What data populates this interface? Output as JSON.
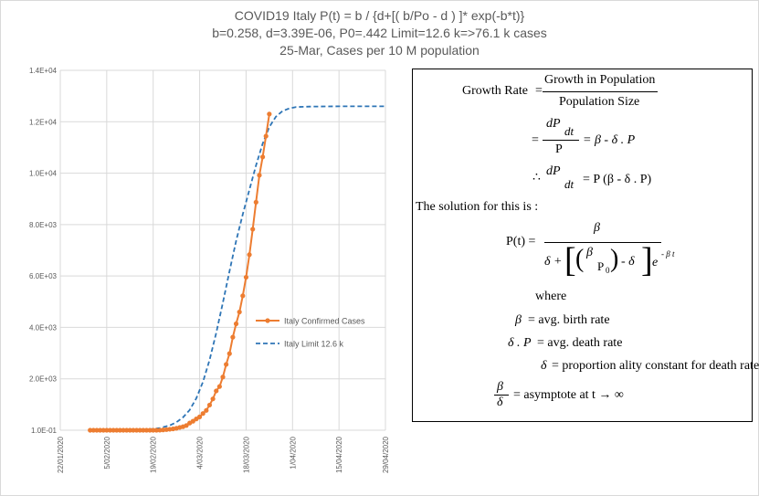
{
  "chart_data": {
    "type": "line",
    "title": "COVID19 Italy P(t) = b / {d+[( b/Po - d ) ]* exp(-b*t)}",
    "subtitle_lines": [
      "b=0.258, d=3.39E-06, P0=.442 Limit=12.6 k=>76.1 k cases",
      "25-Mar, Cases per 10 M population"
    ],
    "xlabel": "",
    "ylabel": "",
    "x_ticks": [
      "22/01/2020",
      "5/02/2020",
      "19/02/2020",
      "4/03/2020",
      "18/03/2020",
      "1/04/2020",
      "15/04/2020",
      "29/04/2020"
    ],
    "y_ticks": [
      "1.0E-01",
      "2.0E+03",
      "4.0E+03",
      "6.0E+03",
      "8.0E+03",
      "1.0E+04",
      "1.2E+04",
      "1.4E+04"
    ],
    "ylim": [
      0,
      14000
    ],
    "grid": true,
    "legend_position": "center-right",
    "series": [
      {
        "name": "Italy Confirmed Cases",
        "color": "#ed7d31",
        "marker": "circle",
        "x": [
          "31/01/2020",
          "1/02/2020",
          "2/02/2020",
          "3/02/2020",
          "4/02/2020",
          "5/02/2020",
          "6/02/2020",
          "7/02/2020",
          "8/02/2020",
          "9/02/2020",
          "10/02/2020",
          "11/02/2020",
          "12/02/2020",
          "13/02/2020",
          "14/02/2020",
          "15/02/2020",
          "16/02/2020",
          "17/02/2020",
          "18/02/2020",
          "19/02/2020",
          "20/02/2020",
          "21/02/2020",
          "22/02/2020",
          "23/02/2020",
          "24/02/2020",
          "25/02/2020",
          "26/02/2020",
          "27/02/2020",
          "28/02/2020",
          "29/02/2020",
          "1/03/2020",
          "2/03/2020",
          "3/03/2020",
          "4/03/2020",
          "5/03/2020",
          "6/03/2020",
          "7/03/2020",
          "8/03/2020",
          "9/03/2020",
          "10/03/2020",
          "11/03/2020",
          "12/03/2020",
          "13/03/2020",
          "14/03/2020",
          "15/03/2020",
          "16/03/2020",
          "17/03/2020",
          "18/03/2020",
          "19/03/2020",
          "20/03/2020",
          "21/03/2020",
          "22/03/2020",
          "23/03/2020",
          "24/03/2020",
          "25/03/2020"
        ],
        "y": [
          0.3,
          0.3,
          0.3,
          0.3,
          0.3,
          0.3,
          0.3,
          0.5,
          0.5,
          0.5,
          0.5,
          0.5,
          0.5,
          0.5,
          0.5,
          0.5,
          0.5,
          0.5,
          0.5,
          0.5,
          0.5,
          3,
          13,
          25,
          38,
          53,
          76,
          108,
          137,
          185,
          280,
          350,
          440,
          520,
          650,
          770,
          980,
          1220,
          1530,
          1700,
          2070,
          2560,
          2980,
          3620,
          4140,
          4600,
          5230,
          5950,
          6830,
          7820,
          8870,
          9920,
          10630,
          11440,
          12300
        ]
      },
      {
        "name": "Italy Limit 12.6 k",
        "color": "#2e75b6",
        "dash": "dashed",
        "x": [
          "31/01/2020",
          "5/02/2020",
          "10/02/2020",
          "15/02/2020",
          "18/02/2020",
          "21/02/2020",
          "24/02/2020",
          "26/02/2020",
          "28/02/2020",
          "1/03/2020",
          "3/03/2020",
          "5/03/2020",
          "7/03/2020",
          "9/03/2020",
          "11/03/2020",
          "13/03/2020",
          "15/03/2020",
          "17/03/2020",
          "19/03/2020",
          "21/03/2020",
          "23/03/2020",
          "25/03/2020",
          "27/03/2020",
          "29/03/2020",
          "31/03/2020",
          "2/04/2020",
          "6/04/2020",
          "15/04/2020",
          "29/04/2020"
        ],
        "y": [
          0.5,
          2,
          6,
          20,
          40,
          85,
          190,
          310,
          500,
          790,
          1240,
          1880,
          2740,
          3780,
          4960,
          6190,
          7360,
          8400,
          9360,
          10300,
          11150,
          11800,
          12200,
          12420,
          12520,
          12570,
          12590,
          12600,
          12600
        ]
      }
    ]
  },
  "formula_panel": {
    "growth_rate_label": "Growth Rate",
    "eq": "=",
    "growth_num": "Growth in Population",
    "growth_den": "Population Size",
    "dP": "dP",
    "dt": "dt",
    "P": "P",
    "rhs1": "= β - δ . P",
    "therefore": "∴",
    "rhs2": "= P (β - δ . P)",
    "solution_text": "The solution for this is :",
    "pt_label": "P(t) =",
    "beta": "β",
    "delta_plus": "δ +",
    "p0": "P",
    "p0_sub": "0",
    "minus_delta": "- δ",
    "e": "e",
    "exp_sup": "- β t",
    "where": "where",
    "def1_sym": "β",
    "def1_text": "= avg. birth rate",
    "def2_sym": "δ . P",
    "def2_text": "= avg. death rate",
    "def3_sym": "δ",
    "def3_text": "= proportion ality constant for death rate",
    "def4_text": "= asymptote at t → ∞"
  }
}
